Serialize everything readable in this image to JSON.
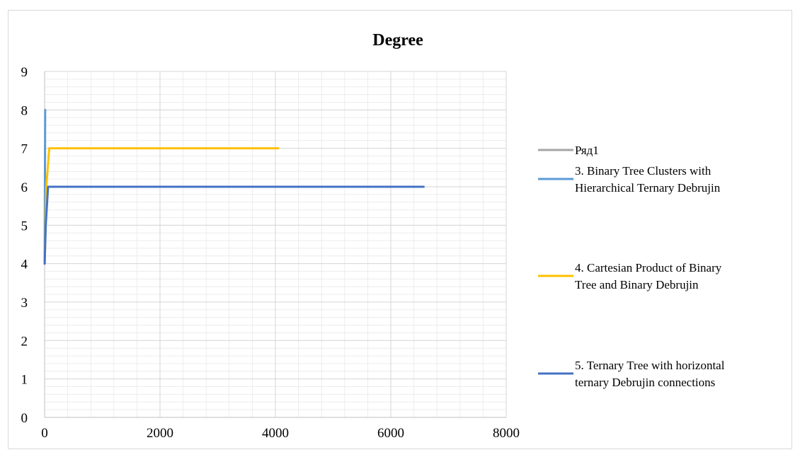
{
  "chart_data": {
    "type": "line",
    "title": "Degree",
    "xlabel": "",
    "ylabel": "",
    "xlim": [
      0,
      8000
    ],
    "ylim": [
      0,
      9
    ],
    "x_ticks": [
      "0",
      "2000",
      "4000",
      "6000",
      "8000"
    ],
    "y_ticks": [
      "0",
      "1",
      "2",
      "3",
      "4",
      "5",
      "6",
      "7",
      "8",
      "9"
    ],
    "grid": "major-and-minor",
    "legend_position": "right",
    "series": [
      {
        "name": "Ряд1",
        "legend_lines": [
          "Ряд1"
        ],
        "color": "#a5a5a5",
        "x": [],
        "y": []
      },
      {
        "name": "3. Binary Tree Clusters with Hierarchical Ternary Debrujin",
        "legend_lines": [
          "3. Binary Tree Clusters with",
          "Hierarchical Ternary Debrujin"
        ],
        "color": "#5b9bd5",
        "x": [
          1,
          5,
          10
        ],
        "y": [
          4,
          6,
          8
        ]
      },
      {
        "name": "4. Cartesian Product of Binary Tree and Binary Debrujin",
        "legend_lines": [
          "4. Cartesian Product of Binary",
          "Tree and Binary Debrujin"
        ],
        "color": "#ffc000",
        "x": [
          2,
          30,
          80,
          4050
        ],
        "y": [
          4,
          6,
          7,
          7
        ]
      },
      {
        "name": "5. Ternary Tree with horizontal ternary Debrujin connections",
        "legend_lines": [
          "5. Ternary Tree with horizontal",
          "ternary Debrujin connections"
        ],
        "color": "#4472c4",
        "x": [
          1,
          20,
          60,
          6570
        ],
        "y": [
          4,
          5,
          6,
          6
        ]
      }
    ]
  }
}
